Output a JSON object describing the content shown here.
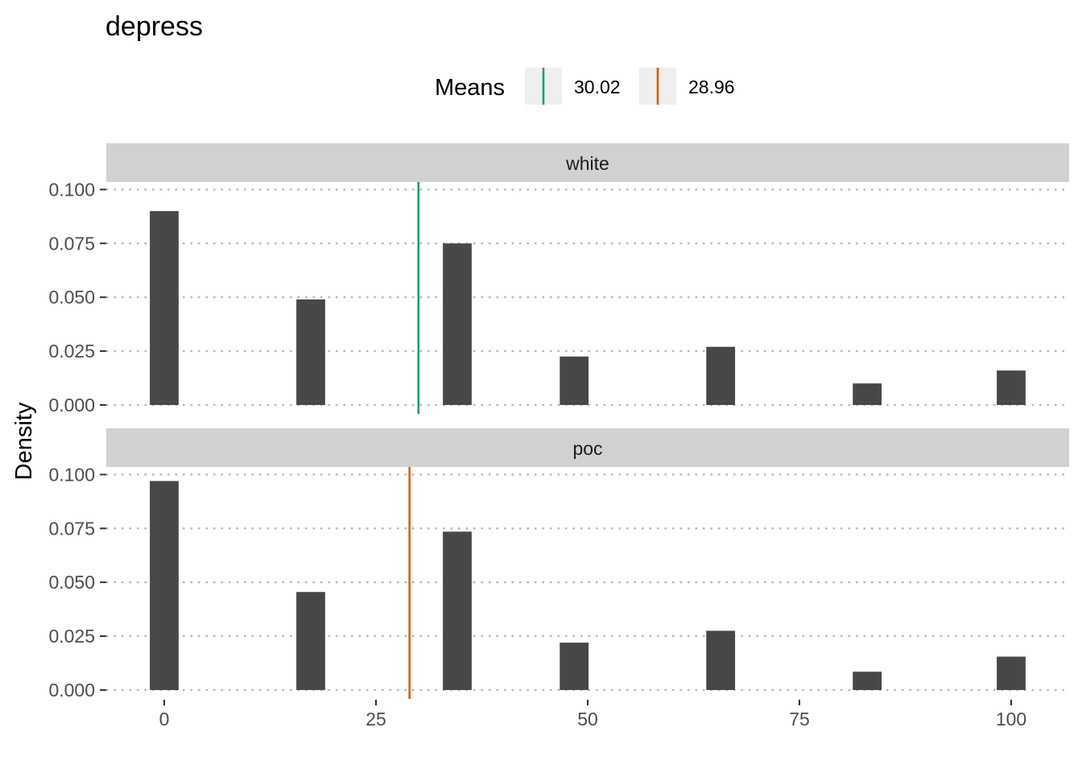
{
  "chart_data": {
    "type": "bar",
    "title": "depress",
    "xlabel": "",
    "ylabel": "Density",
    "xlim": [
      -7,
      110
    ],
    "ylim": [
      -0.0045,
      0.1035
    ],
    "x_ticks": [
      "0",
      "25",
      "50",
      "75",
      "100"
    ],
    "x_tick_values": [
      0,
      25,
      50,
      75,
      100
    ],
    "y_ticks": [
      "0.000",
      "0.025",
      "0.050",
      "0.075",
      "0.100"
    ],
    "y_tick_values": [
      0,
      0.025,
      0.05,
      0.075,
      0.1
    ],
    "grid": "dotted-horizontal",
    "legend": {
      "title": "Means",
      "position": "top",
      "entries": [
        {
          "label": "30.02",
          "color": "#1b9e77"
        },
        {
          "label": "28.96",
          "color": "#d95f02"
        }
      ]
    },
    "bar_color": "#474747",
    "bar_x": [
      0,
      17.3,
      34.6,
      48.4,
      65.7,
      83.0,
      100
    ],
    "bar_width": 3.4,
    "panels": [
      {
        "name": "white",
        "values": [
          0.09,
          0.049,
          0.075,
          0.0225,
          0.027,
          0.01,
          0.016
        ],
        "mean": 30.02,
        "mean_color": "#1b9e77"
      },
      {
        "name": "poc",
        "values": [
          0.097,
          0.0455,
          0.0735,
          0.022,
          0.0275,
          0.0085,
          0.0155
        ],
        "mean": 28.96,
        "mean_color": "#d95f02"
      }
    ]
  }
}
